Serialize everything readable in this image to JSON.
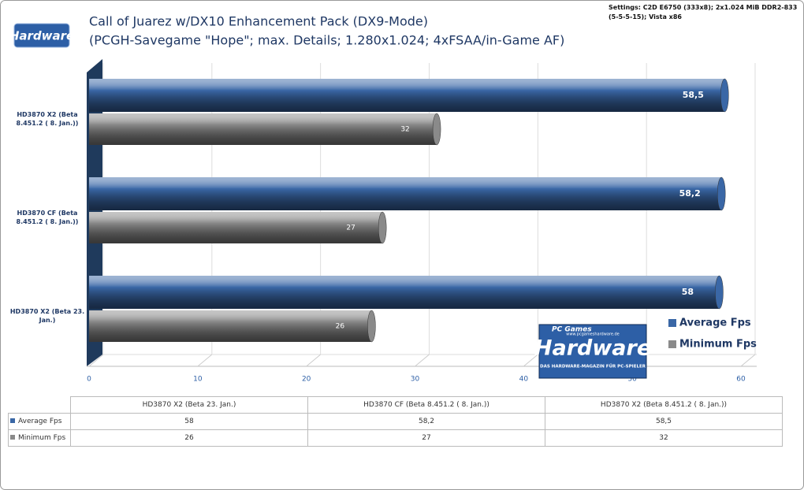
{
  "chart_data": {
    "type": "bar",
    "title": [
      "Call of Juarez w/DX10 Enhancement Pack (DX9-Mode)",
      "(PCGH-Savegame \"Hope\"; max. Details; 1.280x1.024; 4xFSAA/in-Game AF)"
    ],
    "settings_note": "Settings: C2D E6750 (333x8); 2x1.024 MiB DDR2-833 (5-5-5-15); Vista x86",
    "categories": [
      "HD3870 X2 (Beta 23. Jan.)",
      "HD3870 CF (Beta 8.451.2 ( 8. Jan.))",
      "HD3870 X2 (Beta 8.451.2 ( 8. Jan.))"
    ],
    "series": [
      {
        "name": "Average Fps",
        "color": "#3a67a6",
        "values": [
          58,
          58.2,
          58.5
        ],
        "value_labels": [
          "58",
          "58,2",
          "58,5"
        ]
      },
      {
        "name": "Minimum Fps",
        "color": "#8a8a8a",
        "values": [
          26,
          27,
          32
        ],
        "value_labels": [
          "26",
          "27",
          "32"
        ]
      }
    ],
    "xlim": [
      0,
      60
    ],
    "xticks": [
      0,
      10,
      20,
      30,
      40,
      50,
      60
    ],
    "grid": true
  },
  "logos": {
    "small": "Hardware",
    "large_brand": "PC Games",
    "large_url": "www.pcgameshardware.de",
    "large": "Hardware",
    "large_tagline": "DAS HARDWARE-MAGAZIN FÜR PC-SPIELER"
  }
}
